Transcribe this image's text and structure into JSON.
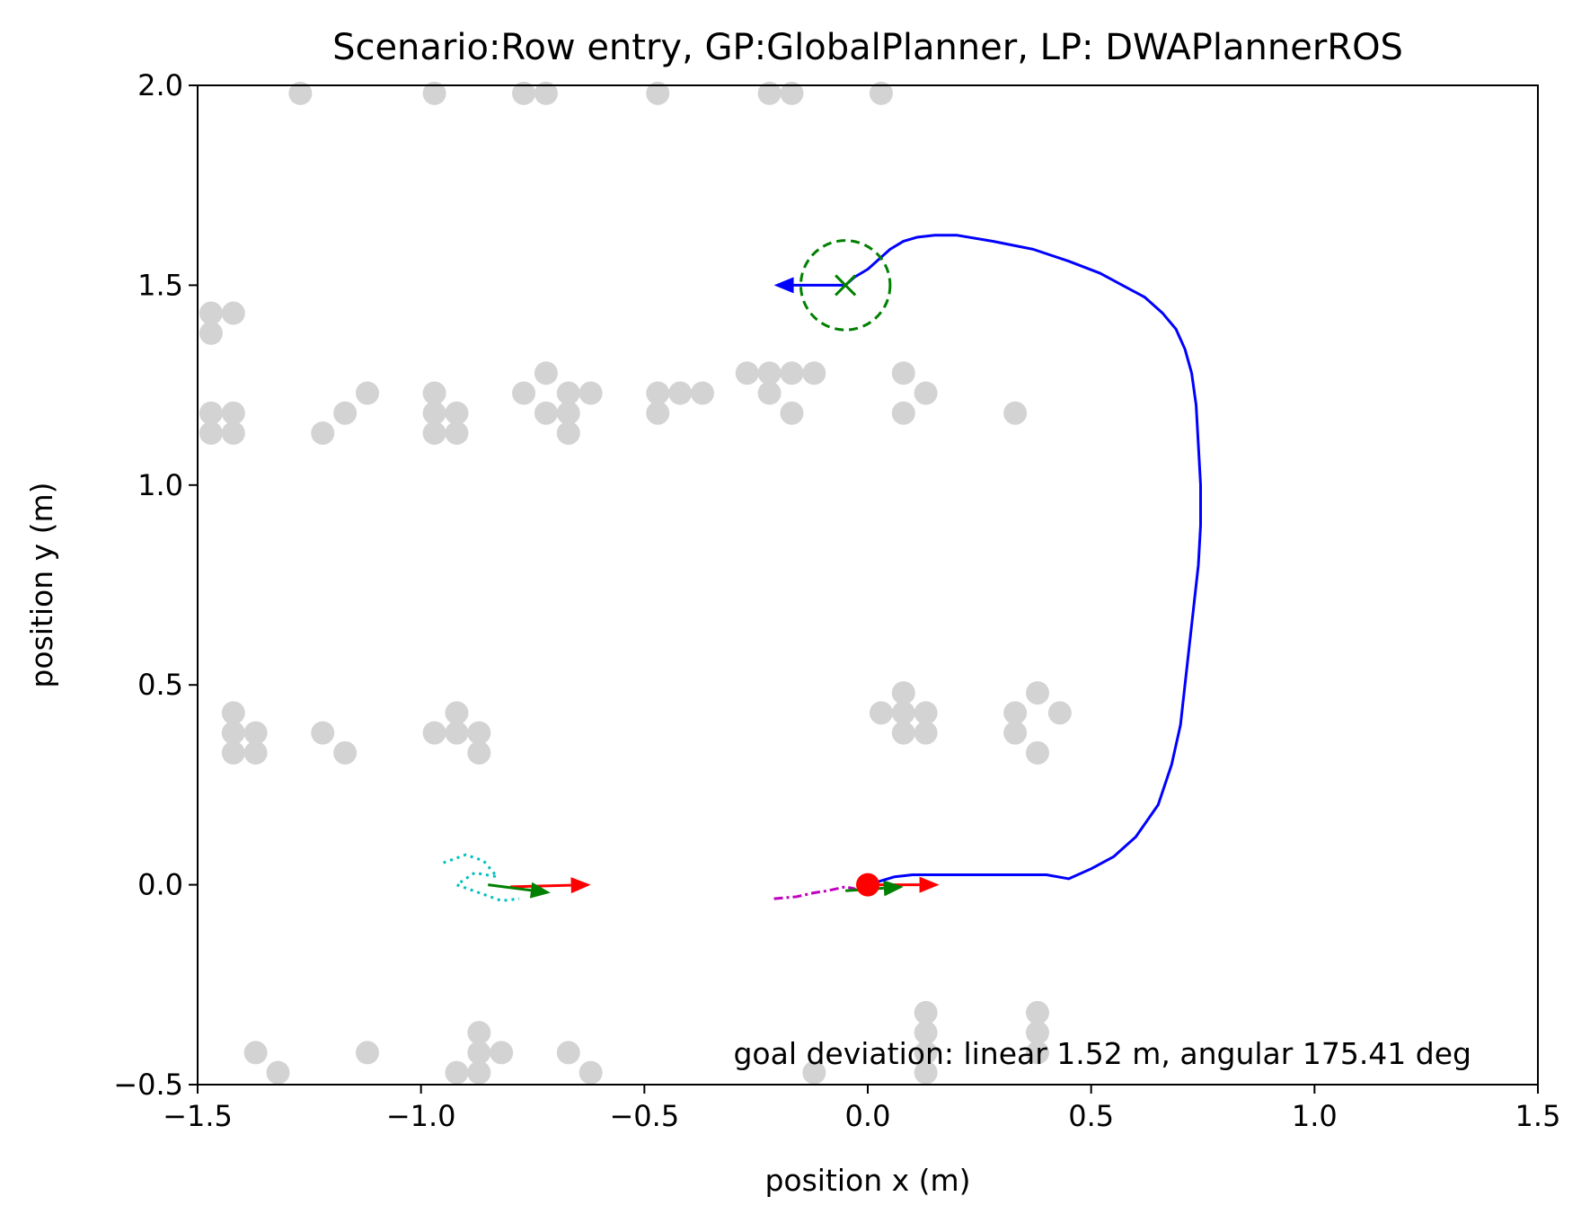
{
  "chart_data": {
    "type": "scatter",
    "title": "Scenario:Row entry, GP:GlobalPlanner, LP: DWAPlannerROS",
    "xlabel": "position x (m)",
    "ylabel": "position y (m)",
    "xlim": [
      -1.5,
      1.5
    ],
    "ylim": [
      -0.5,
      2.0
    ],
    "xticks": [
      -1.5,
      -1.0,
      -0.5,
      0.0,
      0.5,
      1.0,
      1.5
    ],
    "xtick_labels": [
      "−1.5",
      "−1.0",
      "−0.5",
      "0.0",
      "0.5",
      "1.0",
      "1.5"
    ],
    "yticks": [
      -0.5,
      0.0,
      0.5,
      1.0,
      1.5,
      2.0
    ],
    "ytick_labels": [
      "−0.5",
      "0.0",
      "0.5",
      "1.0",
      "1.5",
      "2.0"
    ],
    "grid": false,
    "annotation": "goal deviation: linear 1.52 m, angular 175.41 deg",
    "colors": {
      "obstacle": "#d3d3d3",
      "trajectory": "#0000ff",
      "goal": "#008000",
      "start": "#ff0000",
      "cyan_path": "#00bfbf",
      "magenta_path": "#bf00bf"
    },
    "obstacles": [
      [
        -1.27,
        1.98
      ],
      [
        -0.97,
        1.98
      ],
      [
        -0.77,
        1.98
      ],
      [
        -0.72,
        1.98
      ],
      [
        -0.47,
        1.98
      ],
      [
        -0.22,
        1.98
      ],
      [
        -0.17,
        1.98
      ],
      [
        0.03,
        1.98
      ],
      [
        -1.47,
        1.43
      ],
      [
        -1.42,
        1.43
      ],
      [
        -1.47,
        1.38
      ],
      [
        -1.47,
        1.18
      ],
      [
        -1.42,
        1.18
      ],
      [
        -1.47,
        1.13
      ],
      [
        -1.42,
        1.13
      ],
      [
        -1.22,
        1.13
      ],
      [
        -1.17,
        1.18
      ],
      [
        -1.12,
        1.23
      ],
      [
        -0.97,
        1.23
      ],
      [
        -0.97,
        1.18
      ],
      [
        -0.92,
        1.18
      ],
      [
        -0.97,
        1.13
      ],
      [
        -0.92,
        1.13
      ],
      [
        -0.77,
        1.23
      ],
      [
        -0.72,
        1.28
      ],
      [
        -0.67,
        1.23
      ],
      [
        -0.62,
        1.23
      ],
      [
        -0.72,
        1.18
      ],
      [
        -0.67,
        1.18
      ],
      [
        -0.67,
        1.13
      ],
      [
        -0.47,
        1.23
      ],
      [
        -0.42,
        1.23
      ],
      [
        -0.37,
        1.23
      ],
      [
        -0.47,
        1.18
      ],
      [
        -0.27,
        1.28
      ],
      [
        -0.22,
        1.28
      ],
      [
        -0.17,
        1.28
      ],
      [
        -0.12,
        1.28
      ],
      [
        -0.22,
        1.23
      ],
      [
        -0.17,
        1.18
      ],
      [
        0.08,
        1.28
      ],
      [
        0.13,
        1.23
      ],
      [
        0.08,
        1.18
      ],
      [
        0.33,
        1.18
      ],
      [
        -1.42,
        0.43
      ],
      [
        -1.42,
        0.38
      ],
      [
        -1.37,
        0.38
      ],
      [
        -1.42,
        0.33
      ],
      [
        -1.37,
        0.33
      ],
      [
        -1.22,
        0.38
      ],
      [
        -1.17,
        0.33
      ],
      [
        -0.97,
        0.38
      ],
      [
        -0.92,
        0.43
      ],
      [
        -0.92,
        0.38
      ],
      [
        -0.87,
        0.38
      ],
      [
        -0.87,
        0.33
      ],
      [
        0.03,
        0.43
      ],
      [
        0.08,
        0.48
      ],
      [
        0.08,
        0.43
      ],
      [
        0.13,
        0.43
      ],
      [
        0.08,
        0.38
      ],
      [
        0.13,
        0.38
      ],
      [
        0.33,
        0.43
      ],
      [
        0.38,
        0.48
      ],
      [
        0.43,
        0.43
      ],
      [
        0.33,
        0.38
      ],
      [
        0.38,
        0.33
      ],
      [
        -1.37,
        -0.42
      ],
      [
        -1.32,
        -0.47
      ],
      [
        -1.12,
        -0.42
      ],
      [
        -0.92,
        -0.47
      ],
      [
        -0.87,
        -0.37
      ],
      [
        -0.87,
        -0.42
      ],
      [
        -0.82,
        -0.42
      ],
      [
        -0.87,
        -0.47
      ],
      [
        -0.67,
        -0.42
      ],
      [
        -0.62,
        -0.47
      ],
      [
        -0.12,
        -0.47
      ],
      [
        0.13,
        -0.32
      ],
      [
        0.13,
        -0.37
      ],
      [
        0.13,
        -0.42
      ],
      [
        0.13,
        -0.47
      ],
      [
        0.38,
        -0.32
      ],
      [
        0.38,
        -0.37
      ],
      [
        0.38,
        -0.42
      ]
    ],
    "trajectory": {
      "x": [
        0.0,
        0.03,
        0.06,
        0.1,
        0.15,
        0.2,
        0.3,
        0.4,
        0.45,
        0.5,
        0.55,
        0.6,
        0.65,
        0.68,
        0.7,
        0.71,
        0.72,
        0.73,
        0.74,
        0.745,
        0.745,
        0.74,
        0.735,
        0.725,
        0.71,
        0.69,
        0.66,
        0.62,
        0.57,
        0.52,
        0.45,
        0.37,
        0.28,
        0.2,
        0.15,
        0.11,
        0.08,
        0.05,
        0.02,
        0.0,
        -0.03,
        -0.05
      ],
      "y": [
        0.0,
        0.01,
        0.02,
        0.025,
        0.025,
        0.025,
        0.025,
        0.025,
        0.015,
        0.04,
        0.07,
        0.12,
        0.2,
        0.3,
        0.4,
        0.5,
        0.6,
        0.7,
        0.8,
        0.9,
        1.0,
        1.1,
        1.2,
        1.28,
        1.34,
        1.39,
        1.43,
        1.47,
        1.5,
        1.53,
        1.56,
        1.59,
        1.61,
        1.625,
        1.625,
        1.62,
        1.61,
        1.59,
        1.56,
        1.54,
        1.52,
        1.5
      ]
    },
    "goal": {
      "x": -0.05,
      "y": 1.5,
      "tolerance_radius": 0.1,
      "heading_deg": 180,
      "arrow_length": 0.16
    },
    "start": {
      "x": 0.0,
      "y": 0.0
    },
    "pose_arrows": [
      {
        "x": 0.0,
        "y": 0.0,
        "dx": 0.16,
        "dy": 0.0,
        "color": "#ff0000"
      },
      {
        "x": -0.05,
        "y": -0.015,
        "dx": 0.13,
        "dy": 0.01,
        "color": "#008000"
      },
      {
        "x": -0.8,
        "y": -0.005,
        "dx": 0.18,
        "dy": 0.005,
        "color": "#ff0000"
      },
      {
        "x": -0.85,
        "y": 0.0,
        "dx": 0.14,
        "dy": -0.02,
        "color": "#008000"
      }
    ],
    "cyan_path": {
      "x": [
        -0.95,
        -0.9,
        -0.86,
        -0.83,
        -0.88,
        -0.92,
        -0.87,
        -0.82,
        -0.78
      ],
      "y": [
        0.055,
        0.075,
        0.06,
        0.02,
        0.03,
        0.0,
        -0.02,
        -0.04,
        -0.035
      ]
    },
    "magenta_path": {
      "x": [
        -0.21,
        -0.16,
        -0.12,
        -0.09,
        -0.07,
        -0.05,
        -0.03,
        -0.02
      ],
      "y": [
        -0.035,
        -0.03,
        -0.02,
        -0.015,
        -0.01,
        -0.005,
        -0.01,
        -0.02
      ]
    }
  }
}
